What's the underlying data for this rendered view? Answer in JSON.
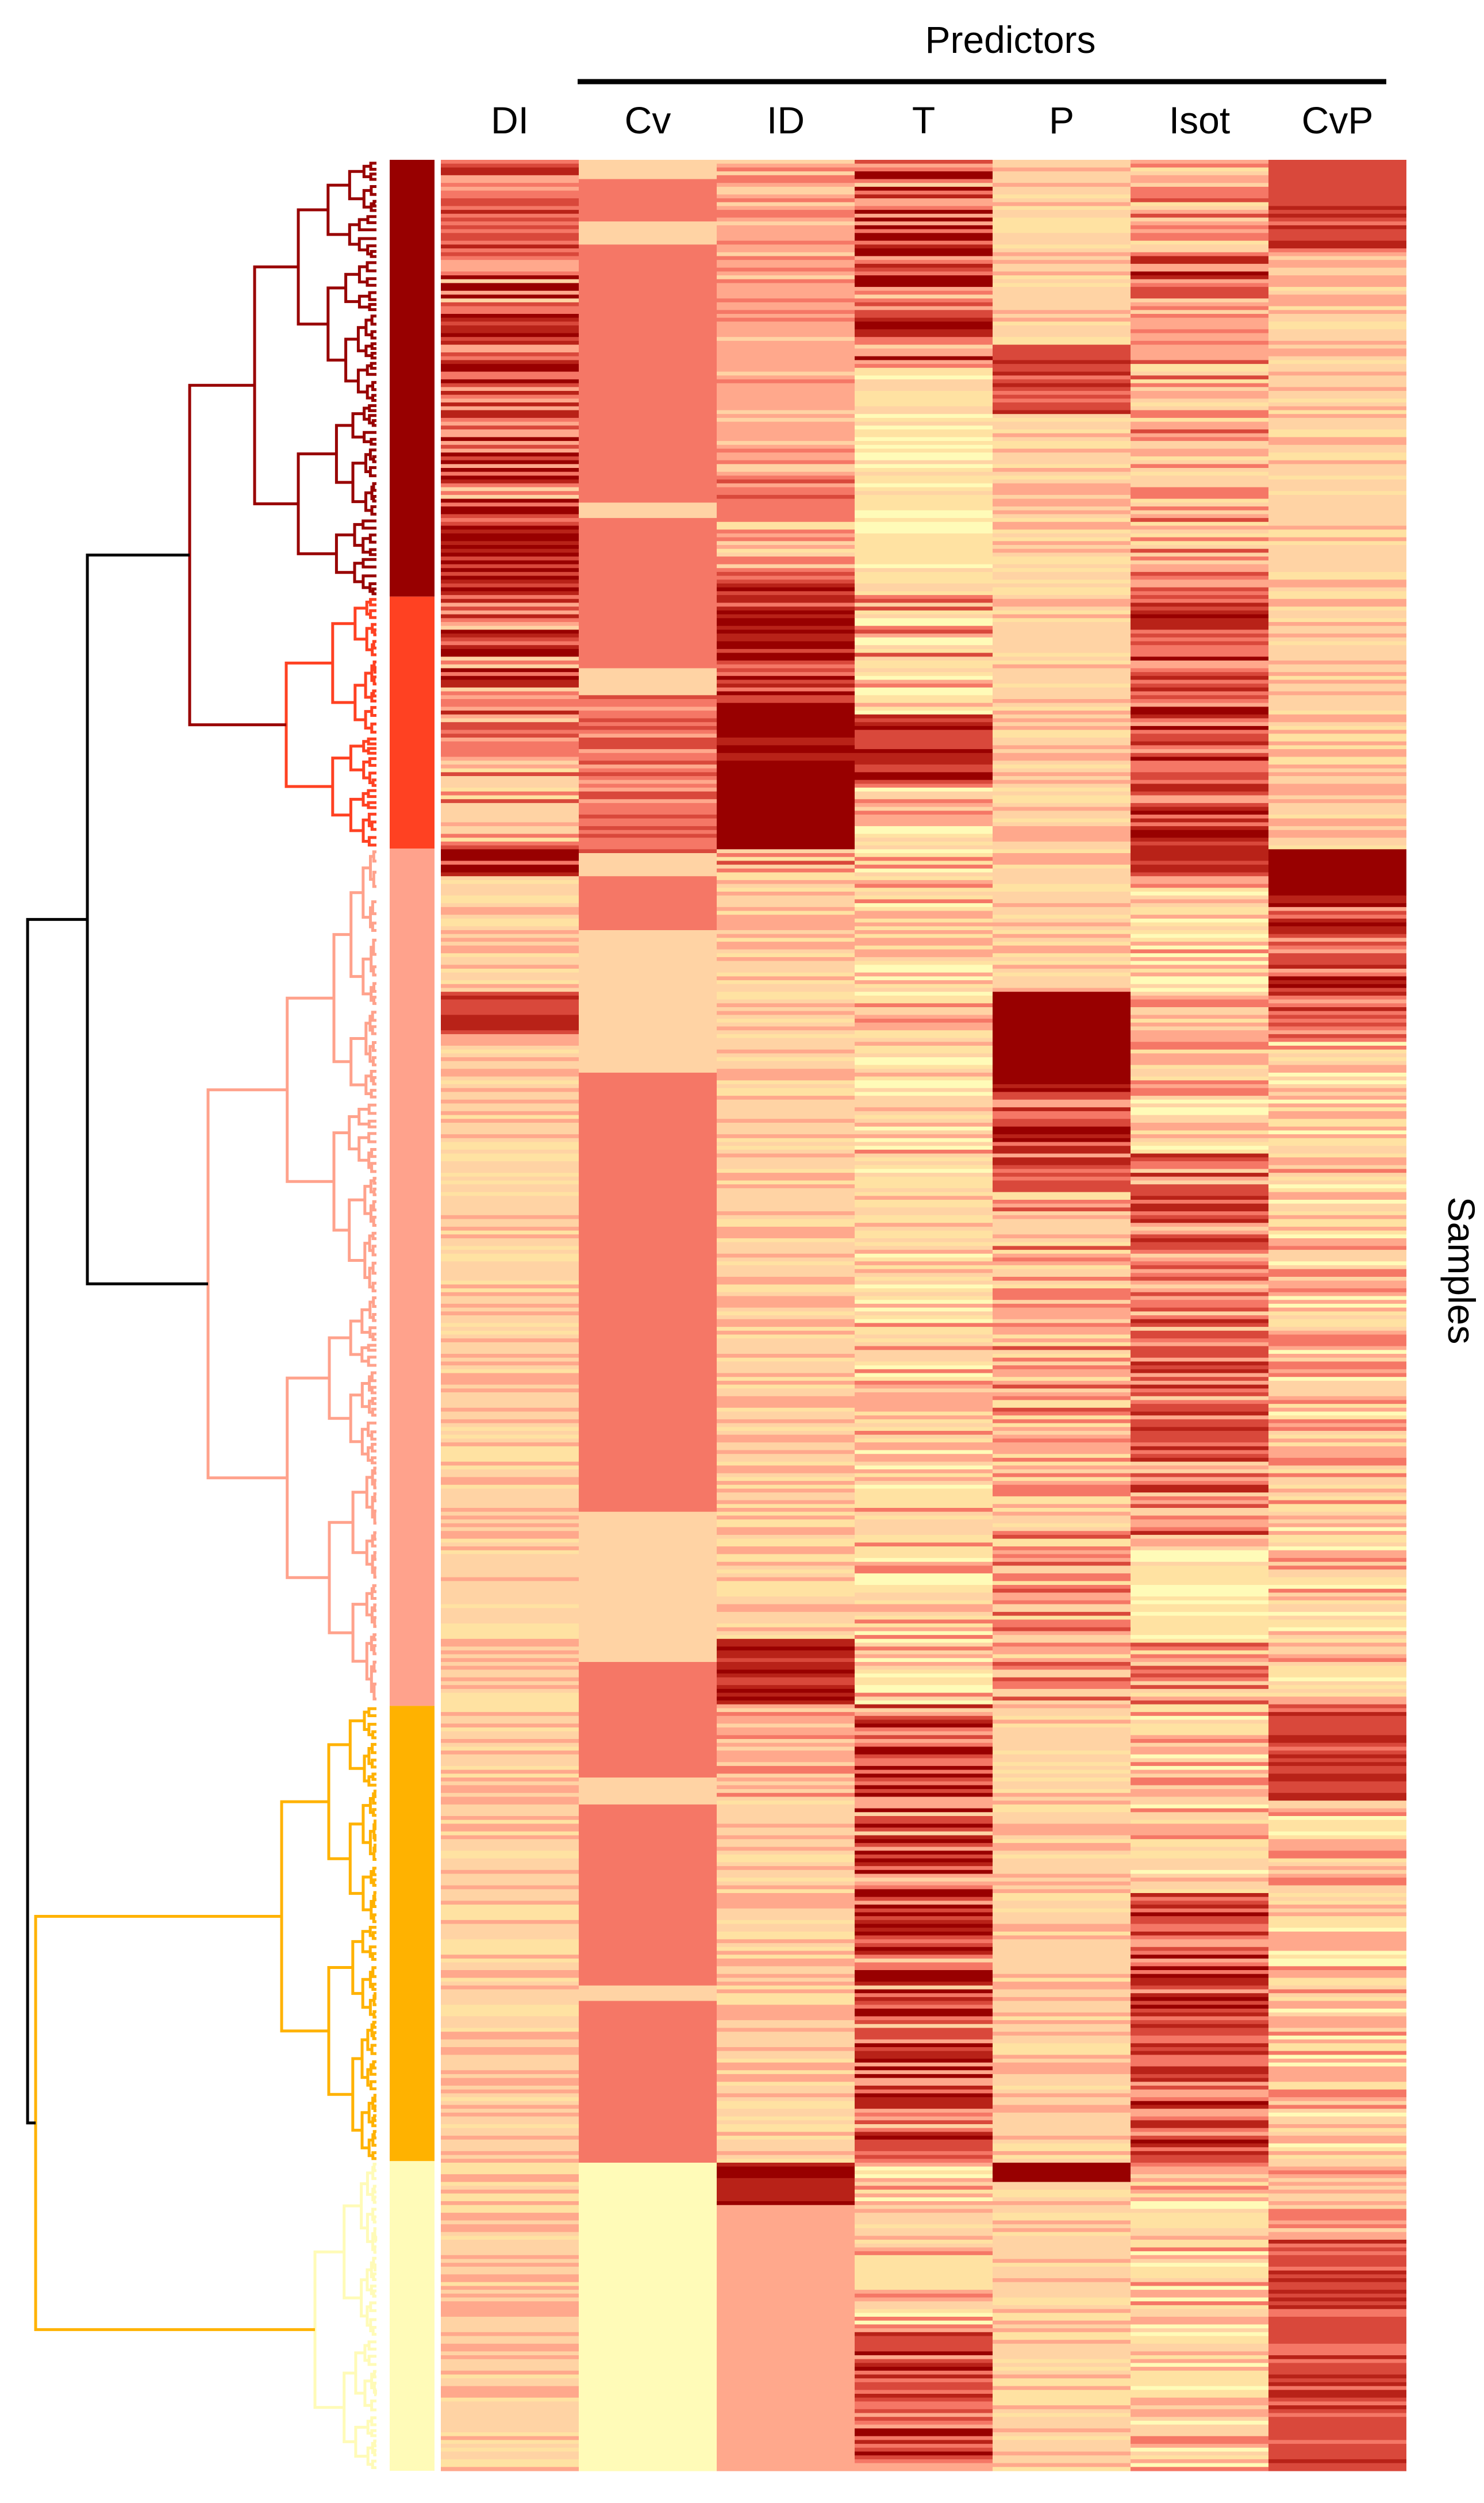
{
  "chart_data": {
    "type": "heatmap",
    "title": "",
    "group_label": "Predictors",
    "ylabel": "Samples",
    "columns": [
      "DI",
      "Cv",
      "ID",
      "T",
      "P",
      "Isot",
      "CvP"
    ],
    "grouped_columns": [
      "Cv",
      "ID",
      "T",
      "P",
      "Isot",
      "CvP"
    ],
    "colorscale": [
      "#FFFBB8",
      "#FFE2A2",
      "#FFD3A4",
      "#FFA88C",
      "#F57766",
      "#D9483B",
      "#B82218",
      "#980000"
    ],
    "row_count": 600,
    "clusters": [
      {
        "name": "cluster-1",
        "color": "#980000",
        "start_fraction": 0.0,
        "end_fraction": 0.189
      },
      {
        "name": "cluster-2",
        "color": "#FF4122",
        "start_fraction": 0.189,
        "end_fraction": 0.298
      },
      {
        "name": "cluster-3",
        "color": "#FFA28C",
        "start_fraction": 0.298,
        "end_fraction": 0.669
      },
      {
        "name": "cluster-4",
        "color": "#FFB200",
        "start_fraction": 0.669,
        "end_fraction": 0.866
      },
      {
        "name": "cluster-5",
        "color": "#FFFBB8",
        "start_fraction": 0.866,
        "end_fraction": 1.0
      }
    ],
    "column_profiles": {
      "DI": [
        {
          "start": 0.0,
          "end": 0.04,
          "level": 5,
          "noise": 2
        },
        {
          "start": 0.04,
          "end": 0.1,
          "level": 5,
          "noise": 3
        },
        {
          "start": 0.1,
          "end": 0.15,
          "level": 5,
          "noise": 3
        },
        {
          "start": 0.15,
          "end": 0.189,
          "level": 6,
          "noise": 2
        },
        {
          "start": 0.189,
          "end": 0.24,
          "level": 5,
          "noise": 3
        },
        {
          "start": 0.24,
          "end": 0.298,
          "level": 3,
          "noise": 2
        },
        {
          "start": 0.298,
          "end": 0.31,
          "level": 6,
          "noise": 2
        },
        {
          "start": 0.31,
          "end": 0.36,
          "level": 2,
          "noise": 1
        },
        {
          "start": 0.36,
          "end": 0.38,
          "level": 5,
          "noise": 2
        },
        {
          "start": 0.38,
          "end": 0.669,
          "level": 2,
          "noise": 1
        },
        {
          "start": 0.669,
          "end": 1.0,
          "level": 2,
          "noise": 1
        }
      ],
      "Cv": [
        {
          "start": 0.0,
          "end": 0.008,
          "level": 2,
          "noise": 0
        },
        {
          "start": 0.008,
          "end": 0.026,
          "level": 4,
          "noise": 0
        },
        {
          "start": 0.026,
          "end": 0.036,
          "level": 2,
          "noise": 0
        },
        {
          "start": 0.036,
          "end": 0.148,
          "level": 4,
          "noise": 0
        },
        {
          "start": 0.148,
          "end": 0.155,
          "level": 2,
          "noise": 0
        },
        {
          "start": 0.155,
          "end": 0.22,
          "level": 4,
          "noise": 0
        },
        {
          "start": 0.22,
          "end": 0.232,
          "level": 2,
          "noise": 0
        },
        {
          "start": 0.232,
          "end": 0.3,
          "level": 4,
          "noise": 1
        },
        {
          "start": 0.3,
          "end": 0.31,
          "level": 2,
          "noise": 0
        },
        {
          "start": 0.31,
          "end": 0.333,
          "level": 4,
          "noise": 0
        },
        {
          "start": 0.333,
          "end": 0.395,
          "level": 2,
          "noise": 0
        },
        {
          "start": 0.395,
          "end": 0.585,
          "level": 4,
          "noise": 0
        },
        {
          "start": 0.585,
          "end": 0.65,
          "level": 2,
          "noise": 0
        },
        {
          "start": 0.65,
          "end": 0.7,
          "level": 4,
          "noise": 0
        },
        {
          "start": 0.7,
          "end": 0.712,
          "level": 2,
          "noise": 0
        },
        {
          "start": 0.712,
          "end": 0.79,
          "level": 4,
          "noise": 0
        },
        {
          "start": 0.79,
          "end": 0.797,
          "level": 2,
          "noise": 0
        },
        {
          "start": 0.797,
          "end": 0.866,
          "level": 4,
          "noise": 0
        },
        {
          "start": 0.866,
          "end": 1.0,
          "level": 0,
          "noise": 0
        }
      ],
      "ID": [
        {
          "start": 0.0,
          "end": 0.138,
          "level": 3,
          "noise": 1
        },
        {
          "start": 0.138,
          "end": 0.178,
          "level": 3,
          "noise": 2
        },
        {
          "start": 0.178,
          "end": 0.235,
          "level": 6,
          "noise": 2
        },
        {
          "start": 0.235,
          "end": 0.262,
          "level": 7,
          "noise": 1
        },
        {
          "start": 0.262,
          "end": 0.298,
          "level": 7,
          "noise": 0
        },
        {
          "start": 0.298,
          "end": 0.31,
          "level": 3,
          "noise": 2
        },
        {
          "start": 0.31,
          "end": 0.64,
          "level": 2,
          "noise": 1
        },
        {
          "start": 0.64,
          "end": 0.669,
          "level": 6,
          "noise": 1
        },
        {
          "start": 0.669,
          "end": 0.71,
          "level": 3,
          "noise": 1
        },
        {
          "start": 0.71,
          "end": 0.866,
          "level": 2,
          "noise": 1
        },
        {
          "start": 0.866,
          "end": 0.885,
          "level": 6,
          "noise": 1
        },
        {
          "start": 0.885,
          "end": 1.0,
          "level": 3,
          "noise": 0
        }
      ],
      "T": [
        {
          "start": 0.0,
          "end": 0.09,
          "level": 5,
          "noise": 3
        },
        {
          "start": 0.09,
          "end": 0.189,
          "level": 1,
          "noise": 1
        },
        {
          "start": 0.189,
          "end": 0.24,
          "level": 2,
          "noise": 3
        },
        {
          "start": 0.24,
          "end": 0.27,
          "level": 6,
          "noise": 1
        },
        {
          "start": 0.27,
          "end": 0.669,
          "level": 2,
          "noise": 2
        },
        {
          "start": 0.669,
          "end": 0.866,
          "level": 5,
          "noise": 3
        },
        {
          "start": 0.866,
          "end": 0.94,
          "level": 2,
          "noise": 2
        },
        {
          "start": 0.94,
          "end": 1.0,
          "level": 5,
          "noise": 2
        }
      ],
      "P": [
        {
          "start": 0.0,
          "end": 0.08,
          "level": 2,
          "noise": 1
        },
        {
          "start": 0.08,
          "end": 0.11,
          "level": 5,
          "noise": 1
        },
        {
          "start": 0.11,
          "end": 0.36,
          "level": 2,
          "noise": 1
        },
        {
          "start": 0.36,
          "end": 0.4,
          "level": 7,
          "noise": 0
        },
        {
          "start": 0.4,
          "end": 0.44,
          "level": 5,
          "noise": 2
        },
        {
          "start": 0.44,
          "end": 0.669,
          "level": 3,
          "noise": 2
        },
        {
          "start": 0.669,
          "end": 0.866,
          "level": 2,
          "noise": 1
        },
        {
          "start": 0.866,
          "end": 0.875,
          "level": 7,
          "noise": 0
        },
        {
          "start": 0.875,
          "end": 1.0,
          "level": 2,
          "noise": 1
        }
      ],
      "Isot": [
        {
          "start": 0.0,
          "end": 0.04,
          "level": 3,
          "noise": 2
        },
        {
          "start": 0.04,
          "end": 0.06,
          "level": 5,
          "noise": 2
        },
        {
          "start": 0.06,
          "end": 0.189,
          "level": 3,
          "noise": 2
        },
        {
          "start": 0.189,
          "end": 0.298,
          "level": 5,
          "noise": 2
        },
        {
          "start": 0.298,
          "end": 0.31,
          "level": 6,
          "noise": 1
        },
        {
          "start": 0.31,
          "end": 0.43,
          "level": 2,
          "noise": 2
        },
        {
          "start": 0.43,
          "end": 0.6,
          "level": 4,
          "noise": 2
        },
        {
          "start": 0.6,
          "end": 0.64,
          "level": 1,
          "noise": 1
        },
        {
          "start": 0.64,
          "end": 0.669,
          "level": 3,
          "noise": 2
        },
        {
          "start": 0.669,
          "end": 0.75,
          "level": 2,
          "noise": 2
        },
        {
          "start": 0.75,
          "end": 0.866,
          "level": 5,
          "noise": 2
        },
        {
          "start": 0.866,
          "end": 1.0,
          "level": 2,
          "noise": 2
        }
      ],
      "CvP": [
        {
          "start": 0.0,
          "end": 0.02,
          "level": 5,
          "noise": 0
        },
        {
          "start": 0.02,
          "end": 0.04,
          "level": 5,
          "noise": 1
        },
        {
          "start": 0.04,
          "end": 0.298,
          "level": 2,
          "noise": 1
        },
        {
          "start": 0.298,
          "end": 0.318,
          "level": 7,
          "noise": 0
        },
        {
          "start": 0.318,
          "end": 0.38,
          "level": 5,
          "noise": 2
        },
        {
          "start": 0.38,
          "end": 0.669,
          "level": 2,
          "noise": 2
        },
        {
          "start": 0.669,
          "end": 0.71,
          "level": 5,
          "noise": 1
        },
        {
          "start": 0.71,
          "end": 0.866,
          "level": 2,
          "noise": 2
        },
        {
          "start": 0.866,
          "end": 0.9,
          "level": 3,
          "noise": 1
        },
        {
          "start": 0.9,
          "end": 1.0,
          "level": 5,
          "noise": 1
        }
      ]
    }
  }
}
